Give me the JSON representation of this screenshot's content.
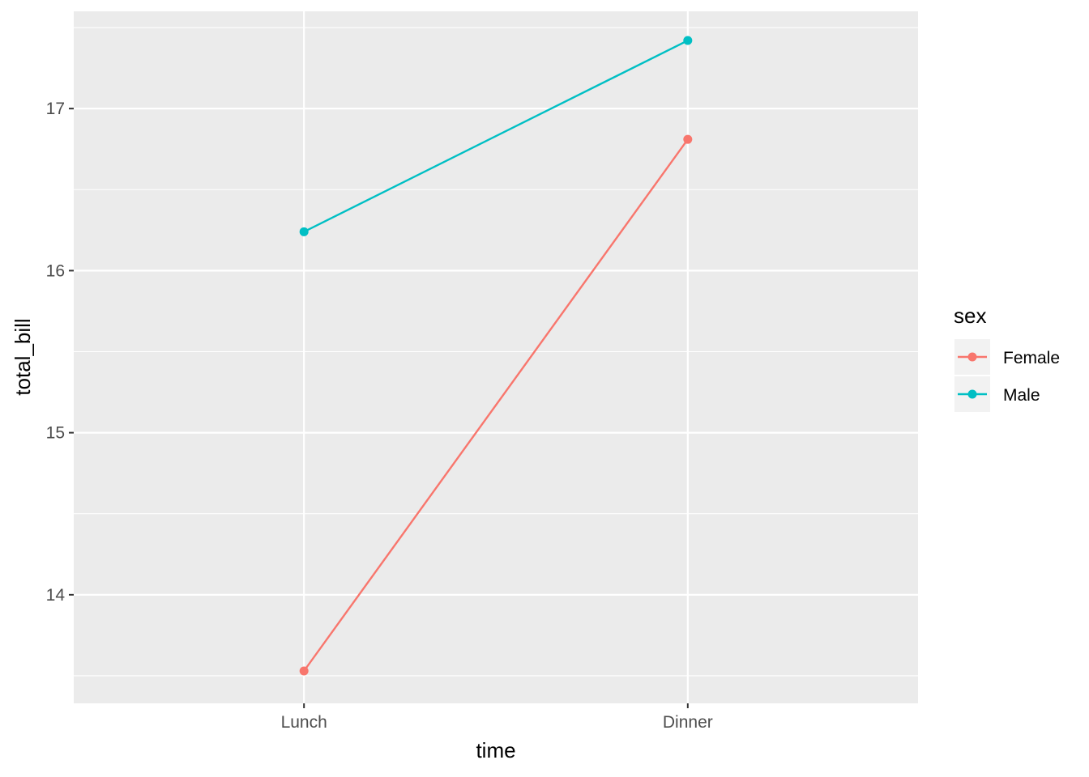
{
  "chart_data": {
    "type": "line",
    "xlabel": "time",
    "ylabel": "total_bill",
    "categories": [
      "Lunch",
      "Dinner"
    ],
    "y_ticks": [
      14,
      15,
      16,
      17
    ],
    "y_tick_labels": [
      "14",
      "15",
      "16",
      "17"
    ],
    "ylim": [
      13.33,
      17.6
    ],
    "grid": true,
    "legend": {
      "title": "sex",
      "position": "right"
    },
    "series": [
      {
        "name": "Female",
        "values": [
          13.53,
          16.81
        ],
        "color": "#F8766D"
      },
      {
        "name": "Male",
        "values": [
          16.24,
          17.42
        ],
        "color": "#00BFC4"
      }
    ],
    "panel_color": "#EBEBEB",
    "grid_color": "#FFFFFF",
    "tick_color": "#333333"
  }
}
